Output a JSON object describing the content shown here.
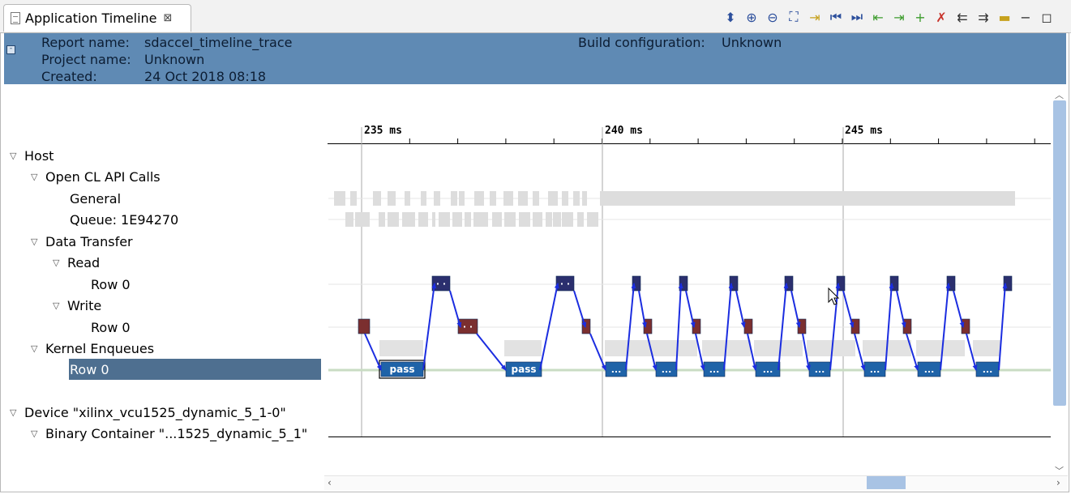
{
  "tab": {
    "title": "Application Timeline",
    "close_glyph": "⊠"
  },
  "toolbar": [
    {
      "name": "expand-collapse-icon",
      "glyph": "⬍"
    },
    {
      "name": "zoom-in-icon",
      "glyph": "⊕"
    },
    {
      "name": "zoom-out-icon",
      "glyph": "⊖"
    },
    {
      "name": "zoom-fit-icon",
      "glyph": "⛶"
    },
    {
      "name": "add-marker-icon",
      "glyph": "⇥"
    },
    {
      "name": "go-to-start-icon",
      "glyph": "⏮"
    },
    {
      "name": "go-to-end-icon",
      "glyph": "⏭"
    },
    {
      "name": "previous-event-icon",
      "glyph": "⇤"
    },
    {
      "name": "next-event-icon",
      "glyph": "⇥"
    },
    {
      "name": "add-cursor-icon",
      "glyph": "+"
    },
    {
      "name": "remove-cursor-icon",
      "glyph": "✗"
    },
    {
      "name": "previous-cursor-icon",
      "glyph": "⇇"
    },
    {
      "name": "next-cursor-icon",
      "glyph": "⇉"
    },
    {
      "name": "ruler-icon",
      "glyph": "▬"
    },
    {
      "name": "minimize-icon",
      "glyph": "−"
    },
    {
      "name": "maximize-icon",
      "glyph": "◻"
    }
  ],
  "header": {
    "report_label": "Report name:",
    "report_value": "sdaccel_timeline_trace",
    "project_label": "Project name:",
    "project_value": "Unknown",
    "created_label": "Created:",
    "created_value": "24 Oct 2018 08:18",
    "build_label": "Build configuration:",
    "build_value": "Unknown"
  },
  "tree": {
    "host": "Host",
    "opencl": "Open CL API Calls",
    "general": "General",
    "queue": "Queue: 1E94270",
    "data_transfer": "Data Transfer",
    "read": "Read",
    "read_row": "Row 0",
    "write": "Write",
    "write_row": "Row 0",
    "kernel": "Kernel Enqueues",
    "kernel_row": "Row 0",
    "device": "Device \"xilinx_vcu1525_dynamic_5_1-0\"",
    "binary": "Binary Container \"...1525_dynamic_5_1\""
  },
  "ruler": {
    "ticks": [
      "235 ms",
      "240 ms",
      "245 ms"
    ]
  },
  "kernel_labels": {
    "pass": "pass",
    "ellipsis": "..."
  },
  "colors": {
    "header_bg": "#5f8ab4",
    "selection": "#4e6f90",
    "read_block": "#2b2f6e",
    "write_block": "#7b2f2f",
    "kernel_block": "#1f63a8",
    "arrow": "#1b2de0",
    "api_block": "#dddddd"
  }
}
